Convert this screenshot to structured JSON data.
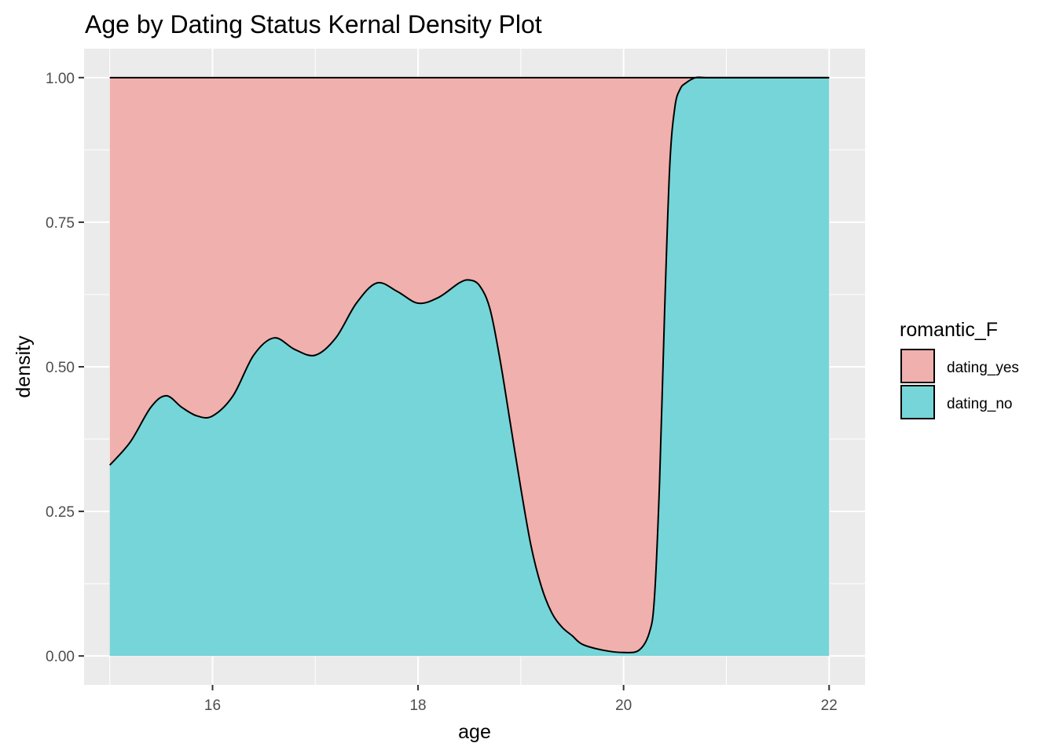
{
  "chart_data": {
    "type": "area",
    "title": "Age by Dating Status Kernal Density Plot",
    "xlabel": "age",
    "ylabel": "density",
    "xlim": [
      14.75,
      22.35
    ],
    "ylim": [
      -0.05,
      1.05
    ],
    "x_ticks": [
      16,
      18,
      20,
      22
    ],
    "y_ticks": [
      0.0,
      0.25,
      0.5,
      0.75,
      1.0
    ],
    "x_tick_labels": [
      "16",
      "18",
      "20",
      "22"
    ],
    "y_tick_labels": [
      "0.00",
      "0.25",
      "0.50",
      "0.75",
      "1.00"
    ],
    "stacked_fill": true,
    "grid": true,
    "legend": {
      "title": "romantic_F",
      "position": "right",
      "entries": [
        {
          "label": "dating_yes",
          "color": "#F0B0AD"
        },
        {
          "label": "dating_no",
          "color": "#76D5D8"
        }
      ]
    },
    "series": [
      {
        "name": "dating_no",
        "color": "#76D5D8",
        "boundary": "lower"
      },
      {
        "name": "dating_yes",
        "color": "#F0B0AD",
        "boundary": "upper"
      }
    ],
    "x": [
      15.0,
      15.2,
      15.4,
      15.55,
      15.7,
      15.85,
      16.0,
      16.2,
      16.4,
      16.6,
      16.8,
      17.0,
      17.2,
      17.4,
      17.6,
      17.8,
      18.0,
      18.2,
      18.4,
      18.5,
      18.6,
      18.7,
      18.8,
      18.9,
      19.0,
      19.1,
      19.2,
      19.3,
      19.4,
      19.5,
      19.6,
      19.8,
      20.0,
      20.15,
      20.25,
      20.3,
      20.35,
      20.4,
      20.45,
      20.5,
      20.55,
      20.6,
      20.7,
      20.8,
      21.0,
      21.5,
      22.0
    ],
    "dating_no_fraction": [
      0.33,
      0.37,
      0.43,
      0.45,
      0.43,
      0.415,
      0.415,
      0.45,
      0.52,
      0.55,
      0.53,
      0.52,
      0.55,
      0.61,
      0.645,
      0.63,
      0.61,
      0.62,
      0.645,
      0.65,
      0.64,
      0.6,
      0.51,
      0.4,
      0.29,
      0.19,
      0.12,
      0.075,
      0.05,
      0.035,
      0.02,
      0.01,
      0.006,
      0.01,
      0.04,
      0.1,
      0.3,
      0.6,
      0.85,
      0.95,
      0.98,
      0.99,
      1.0,
      1.0,
      1.0,
      1.0,
      1.0
    ]
  }
}
